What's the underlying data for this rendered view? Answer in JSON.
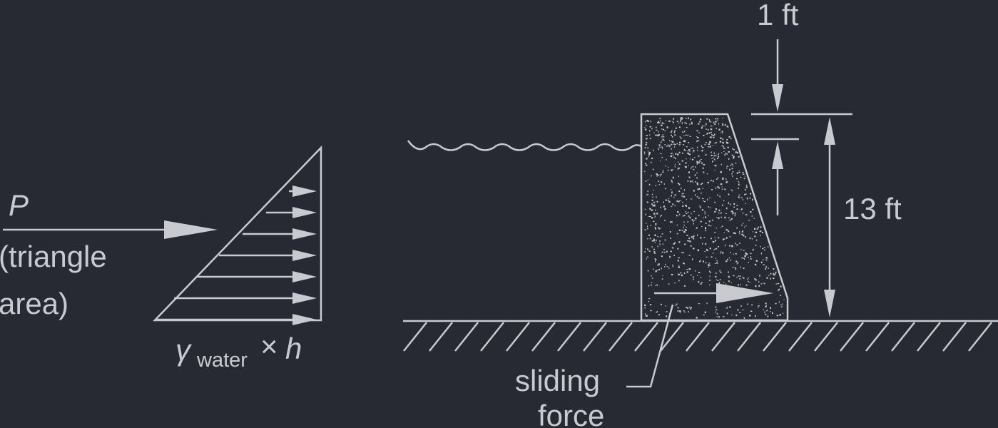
{
  "pressure_diagram": {
    "force_symbol": "P",
    "force_note_line1": "(triangle",
    "force_note_line2": "area)",
    "base_gamma": "γ",
    "base_subscript": "water",
    "base_times": "×",
    "base_h": "h"
  },
  "dam_diagram": {
    "freeboard_label": "1 ft",
    "height_label": "13 ft",
    "sliding_line1": "sliding",
    "sliding_line2": "force"
  },
  "colors": {
    "background": "#272a33",
    "ink": "#c9cad0"
  }
}
